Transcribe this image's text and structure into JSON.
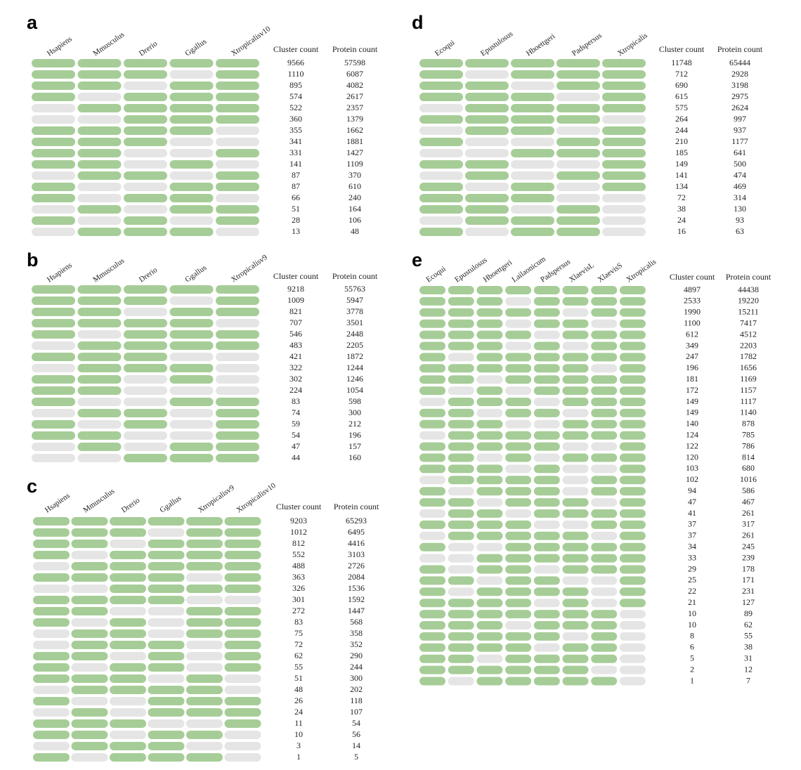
{
  "panels": [
    {
      "label": "a",
      "species": [
        "Hsapiens",
        "Mmusculus",
        "Drerio",
        "Ggallus",
        "Xtropicalisv10"
      ],
      "headers": [
        "Cluster count",
        "Protein count"
      ],
      "patterns": [
        [
          1,
          1,
          1,
          1,
          1
        ],
        [
          1,
          1,
          1,
          0,
          1
        ],
        [
          1,
          1,
          0,
          1,
          1
        ],
        [
          1,
          0,
          1,
          1,
          1
        ],
        [
          0,
          1,
          1,
          1,
          1
        ],
        [
          0,
          0,
          1,
          1,
          1
        ],
        [
          1,
          1,
          1,
          1,
          0
        ],
        [
          1,
          1,
          1,
          0,
          0
        ],
        [
          1,
          1,
          0,
          0,
          1
        ],
        [
          1,
          1,
          0,
          1,
          0
        ],
        [
          0,
          1,
          1,
          0,
          1
        ],
        [
          1,
          0,
          0,
          1,
          1
        ],
        [
          1,
          0,
          1,
          1,
          0
        ],
        [
          0,
          1,
          0,
          1,
          1
        ],
        [
          1,
          0,
          1,
          0,
          1
        ],
        [
          0,
          1,
          1,
          1,
          0
        ]
      ],
      "cluster": [
        9566,
        1110,
        895,
        574,
        522,
        360,
        355,
        341,
        331,
        141,
        87,
        87,
        66,
        51,
        28,
        13
      ],
      "protein": [
        57598,
        6087,
        4082,
        2617,
        2357,
        1379,
        1662,
        1881,
        1427,
        1109,
        370,
        610,
        240,
        164,
        106,
        48
      ]
    },
    {
      "label": "b",
      "species": [
        "Hsapiens",
        "Mmusculus",
        "Drerio",
        "Ggallus",
        "Xtropicalisv9"
      ],
      "headers": [
        "Cluster count",
        "Protein count"
      ],
      "patterns": [
        [
          1,
          1,
          1,
          1,
          1
        ],
        [
          1,
          1,
          1,
          0,
          1
        ],
        [
          1,
          1,
          0,
          1,
          1
        ],
        [
          1,
          1,
          1,
          1,
          0
        ],
        [
          1,
          0,
          1,
          1,
          1
        ],
        [
          0,
          1,
          1,
          1,
          1
        ],
        [
          1,
          1,
          1,
          0,
          0
        ],
        [
          0,
          1,
          1,
          1,
          0
        ],
        [
          1,
          1,
          0,
          1,
          0
        ],
        [
          1,
          1,
          0,
          0,
          0
        ],
        [
          1,
          0,
          0,
          1,
          1
        ],
        [
          0,
          1,
          1,
          0,
          1
        ],
        [
          1,
          0,
          1,
          0,
          1
        ],
        [
          1,
          1,
          0,
          0,
          1
        ],
        [
          0,
          1,
          0,
          1,
          1
        ],
        [
          0,
          0,
          1,
          1,
          1
        ]
      ],
      "cluster": [
        9218,
        1009,
        821,
        707,
        546,
        483,
        421,
        322,
        302,
        224,
        83,
        74,
        59,
        54,
        47,
        44
      ],
      "protein": [
        55763,
        5947,
        3778,
        3501,
        2448,
        2205,
        1872,
        1244,
        1246,
        1054,
        598,
        300,
        212,
        196,
        157,
        160
      ]
    },
    {
      "label": "c",
      "species": [
        "Hsapiens",
        "Mmusculus",
        "Drerio",
        "Ggallus",
        "Xtropicalisv9",
        "Xtropicalisv10"
      ],
      "headers": [
        "Cluster count",
        "Protein count"
      ],
      "patterns": [
        [
          1,
          1,
          1,
          1,
          1,
          1
        ],
        [
          1,
          1,
          1,
          0,
          1,
          1
        ],
        [
          1,
          1,
          0,
          1,
          1,
          1
        ],
        [
          1,
          0,
          1,
          1,
          1,
          1
        ],
        [
          0,
          1,
          1,
          1,
          1,
          1
        ],
        [
          1,
          1,
          1,
          1,
          0,
          1
        ],
        [
          0,
          0,
          1,
          1,
          1,
          1
        ],
        [
          1,
          1,
          1,
          1,
          0,
          0
        ],
        [
          1,
          1,
          0,
          0,
          1,
          1
        ],
        [
          1,
          0,
          1,
          0,
          1,
          1
        ],
        [
          0,
          1,
          1,
          0,
          1,
          1
        ],
        [
          0,
          1,
          1,
          1,
          0,
          1
        ],
        [
          1,
          1,
          0,
          1,
          0,
          1
        ],
        [
          1,
          0,
          1,
          1,
          0,
          1
        ],
        [
          1,
          1,
          1,
          0,
          1,
          0
        ],
        [
          0,
          1,
          1,
          1,
          1,
          0
        ],
        [
          1,
          0,
          0,
          1,
          1,
          1
        ],
        [
          0,
          1,
          0,
          1,
          1,
          1
        ],
        [
          1,
          1,
          1,
          0,
          0,
          1
        ],
        [
          1,
          1,
          0,
          1,
          1,
          0
        ],
        [
          0,
          1,
          1,
          1,
          0,
          0
        ],
        [
          1,
          0,
          1,
          1,
          1,
          0
        ]
      ],
      "cluster": [
        9203,
        1012,
        812,
        552,
        488,
        363,
        326,
        301,
        272,
        83,
        75,
        72,
        62,
        55,
        51,
        48,
        26,
        24,
        11,
        10,
        3,
        1
      ],
      "protein": [
        65293,
        6495,
        4416,
        3103,
        2726,
        2084,
        1536,
        1592,
        1447,
        568,
        358,
        352,
        290,
        244,
        300,
        202,
        118,
        107,
        54,
        56,
        14,
        5
      ]
    },
    {
      "label": "d",
      "species": [
        "Ecoqui",
        "Epustulosus",
        "Hboettgeri",
        "Padspersus",
        "Xtropicalis"
      ],
      "headers": [
        "Cluster count",
        "Protein count"
      ],
      "patterns": [
        [
          1,
          1,
          1,
          1,
          1
        ],
        [
          1,
          0,
          1,
          1,
          1
        ],
        [
          1,
          1,
          0,
          1,
          1
        ],
        [
          1,
          1,
          1,
          0,
          1
        ],
        [
          0,
          1,
          1,
          1,
          1
        ],
        [
          1,
          1,
          1,
          1,
          0
        ],
        [
          0,
          1,
          1,
          0,
          1
        ],
        [
          1,
          0,
          0,
          1,
          1
        ],
        [
          0,
          0,
          1,
          1,
          1
        ],
        [
          1,
          1,
          0,
          0,
          1
        ],
        [
          0,
          1,
          0,
          1,
          1
        ],
        [
          1,
          0,
          1,
          0,
          1
        ],
        [
          1,
          1,
          1,
          0,
          0
        ],
        [
          1,
          1,
          0,
          1,
          0
        ],
        [
          0,
          1,
          1,
          1,
          0
        ],
        [
          1,
          0,
          1,
          1,
          0
        ]
      ],
      "cluster": [
        11748,
        712,
        690,
        615,
        575,
        264,
        244,
        210,
        185,
        149,
        141,
        134,
        72,
        38,
        24,
        16
      ],
      "protein": [
        65444,
        2928,
        3198,
        2975,
        2624,
        997,
        937,
        1177,
        641,
        500,
        474,
        469,
        314,
        130,
        93,
        63
      ]
    },
    {
      "label": "e",
      "species": [
        "Ecoqui",
        "Epustulosus",
        "Hboettgeri",
        "Lailaonicum",
        "Padspersus",
        "XlaevisL",
        "XlaevisS",
        "Xtropicalis"
      ],
      "headers": [
        "Cluster count",
        "Protein count"
      ],
      "patterns": [
        [
          1,
          1,
          1,
          1,
          1,
          1,
          1,
          1
        ],
        [
          1,
          1,
          1,
          0,
          1,
          1,
          1,
          1
        ],
        [
          1,
          1,
          1,
          1,
          1,
          0,
          1,
          1
        ],
        [
          1,
          1,
          1,
          0,
          1,
          1,
          0,
          1
        ],
        [
          1,
          1,
          1,
          1,
          0,
          1,
          1,
          1
        ],
        [
          1,
          1,
          1,
          0,
          1,
          0,
          1,
          1
        ],
        [
          1,
          0,
          1,
          1,
          1,
          1,
          1,
          1
        ],
        [
          1,
          1,
          1,
          1,
          1,
          1,
          0,
          1
        ],
        [
          1,
          1,
          0,
          1,
          1,
          1,
          1,
          1
        ],
        [
          1,
          0,
          1,
          0,
          1,
          1,
          1,
          1
        ],
        [
          0,
          1,
          1,
          1,
          0,
          1,
          1,
          1
        ],
        [
          1,
          1,
          0,
          1,
          1,
          0,
          1,
          1
        ],
        [
          1,
          1,
          1,
          0,
          0,
          1,
          1,
          1
        ],
        [
          0,
          1,
          1,
          1,
          1,
          1,
          1,
          1
        ],
        [
          1,
          1,
          1,
          1,
          1,
          0,
          0,
          1
        ],
        [
          1,
          1,
          0,
          1,
          0,
          1,
          1,
          1
        ],
        [
          1,
          1,
          1,
          0,
          1,
          0,
          0,
          1
        ],
        [
          0,
          1,
          1,
          1,
          1,
          0,
          1,
          1
        ],
        [
          1,
          0,
          1,
          1,
          1,
          0,
          1,
          1
        ],
        [
          1,
          1,
          0,
          1,
          1,
          1,
          0,
          1
        ],
        [
          0,
          1,
          1,
          0,
          1,
          1,
          1,
          1
        ],
        [
          1,
          1,
          1,
          1,
          0,
          0,
          1,
          1
        ],
        [
          0,
          1,
          1,
          1,
          1,
          1,
          0,
          1
        ],
        [
          1,
          0,
          0,
          1,
          1,
          1,
          1,
          1
        ],
        [
          0,
          0,
          1,
          1,
          1,
          1,
          1,
          1
        ],
        [
          1,
          0,
          1,
          1,
          0,
          1,
          1,
          1
        ],
        [
          1,
          1,
          0,
          1,
          1,
          0,
          0,
          1
        ],
        [
          1,
          0,
          1,
          1,
          1,
          1,
          0,
          1
        ],
        [
          1,
          1,
          1,
          1,
          0,
          1,
          0,
          1
        ],
        [
          1,
          1,
          1,
          1,
          1,
          1,
          1,
          0
        ],
        [
          1,
          1,
          1,
          0,
          1,
          1,
          1,
          0
        ],
        [
          1,
          1,
          1,
          1,
          1,
          0,
          1,
          0
        ],
        [
          1,
          1,
          1,
          1,
          0,
          1,
          1,
          0
        ],
        [
          1,
          1,
          0,
          1,
          1,
          1,
          1,
          0
        ],
        [
          1,
          1,
          1,
          1,
          1,
          1,
          0,
          0
        ],
        [
          1,
          0,
          1,
          1,
          1,
          1,
          1,
          0
        ]
      ],
      "cluster": [
        4897,
        2533,
        1990,
        1100,
        612,
        349,
        247,
        196,
        181,
        172,
        149,
        149,
        140,
        124,
        122,
        120,
        103,
        102,
        94,
        47,
        41,
        37,
        37,
        34,
        33,
        29,
        25,
        22,
        21,
        10,
        10,
        8,
        6,
        5,
        2,
        1
      ],
      "protein": [
        44438,
        19220,
        15211,
        7417,
        4512,
        2203,
        1782,
        1656,
        1169,
        1157,
        1117,
        1140,
        878,
        785,
        786,
        814,
        680,
        1016,
        586,
        467,
        261,
        317,
        261,
        245,
        239,
        178,
        171,
        231,
        127,
        89,
        62,
        55,
        38,
        31,
        12,
        7
      ]
    }
  ]
}
